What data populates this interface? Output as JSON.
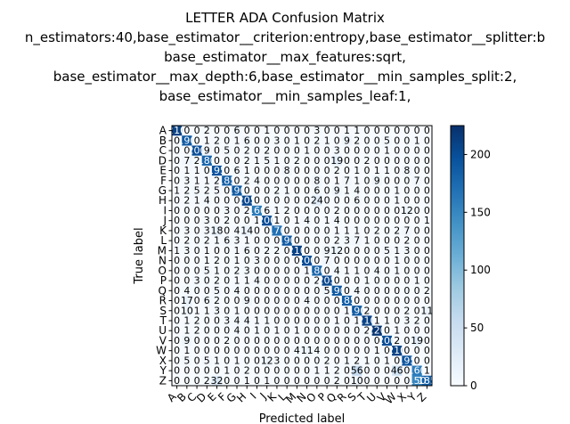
{
  "chart_data": {
    "type": "heatmap",
    "title_lines": [
      "LETTER ADA Confusion Matrix",
      "n_estimators:40,base_estimator__criterion:entropy,base_estimator__splitter:b",
      "base_estimator__max_features:sqrt,",
      "base_estimator__max_depth:6,base_estimator__min_samples_split:2,",
      "base_estimator__min_samples_leaf:1,"
    ],
    "xlabel": "Predicted label",
    "ylabel": "True label",
    "labels": [
      "A",
      "B",
      "C",
      "D",
      "E",
      "F",
      "G",
      "H",
      "I",
      "J",
      "K",
      "L",
      "M",
      "N",
      "O",
      "P",
      "Q",
      "R",
      "S",
      "T",
      "U",
      "V",
      "W",
      "X",
      "Y",
      "Z"
    ],
    "matrix": [
      [
        210,
        0,
        0,
        2,
        0,
        0,
        6,
        0,
        0,
        1,
        0,
        0,
        0,
        0,
        3,
        0,
        0,
        1,
        1,
        0,
        0,
        0,
        0,
        0,
        0,
        0
      ],
      [
        0,
        190,
        0,
        1,
        2,
        0,
        1,
        6,
        0,
        0,
        3,
        0,
        1,
        0,
        2,
        1,
        0,
        9,
        2,
        0,
        0,
        5,
        0,
        0,
        1,
        0
      ],
      [
        0,
        0,
        200,
        9,
        0,
        5,
        0,
        2,
        0,
        2,
        0,
        0,
        0,
        1,
        0,
        0,
        3,
        0,
        0,
        0,
        0,
        1,
        0,
        0,
        0,
        0
      ],
      [
        0,
        7,
        2,
        180,
        0,
        0,
        0,
        2,
        1,
        5,
        1,
        0,
        2,
        0,
        0,
        0,
        19,
        0,
        0,
        2,
        0,
        0,
        0,
        0,
        0,
        0
      ],
      [
        0,
        1,
        1,
        0,
        195,
        0,
        6,
        1,
        0,
        0,
        0,
        8,
        0,
        0,
        0,
        0,
        2,
        0,
        1,
        0,
        1,
        1,
        0,
        8,
        0,
        0
      ],
      [
        0,
        3,
        1,
        1,
        2,
        185,
        0,
        2,
        4,
        0,
        0,
        0,
        0,
        0,
        8,
        0,
        1,
        7,
        1,
        0,
        9,
        0,
        0,
        0,
        7,
        0
      ],
      [
        1,
        2,
        5,
        2,
        5,
        0,
        190,
        0,
        0,
        0,
        2,
        1,
        0,
        0,
        6,
        0,
        9,
        1,
        4,
        0,
        0,
        0,
        1,
        0,
        0,
        0
      ],
      [
        0,
        2,
        1,
        4,
        0,
        0,
        0,
        205,
        0,
        0,
        0,
        0,
        0,
        0,
        24,
        0,
        0,
        0,
        6,
        0,
        0,
        0,
        1,
        0,
        0,
        0
      ],
      [
        0,
        0,
        0,
        0,
        0,
        3,
        0,
        2,
        160,
        6,
        1,
        2,
        0,
        0,
        0,
        0,
        2,
        0,
        0,
        0,
        0,
        0,
        0,
        12,
        0,
        0
      ],
      [
        0,
        0,
        0,
        3,
        0,
        2,
        0,
        0,
        1,
        200,
        1,
        0,
        1,
        4,
        0,
        1,
        4,
        0,
        0,
        0,
        0,
        0,
        0,
        0,
        0,
        1
      ],
      [
        0,
        3,
        0,
        3,
        18,
        0,
        4,
        14,
        0,
        0,
        170,
        0,
        0,
        0,
        0,
        0,
        1,
        1,
        1,
        0,
        2,
        0,
        2,
        7,
        0,
        0
      ],
      [
        0,
        2,
        0,
        2,
        1,
        6,
        3,
        1,
        0,
        0,
        0,
        190,
        0,
        0,
        0,
        0,
        2,
        3,
        7,
        1,
        0,
        0,
        0,
        2,
        0,
        0
      ],
      [
        1,
        3,
        0,
        1,
        0,
        0,
        1,
        6,
        0,
        2,
        2,
        0,
        210,
        0,
        0,
        9,
        12,
        0,
        0,
        0,
        0,
        5,
        1,
        3,
        0,
        0
      ],
      [
        0,
        0,
        0,
        1,
        2,
        0,
        1,
        0,
        3,
        0,
        0,
        0,
        0,
        200,
        0,
        7,
        0,
        0,
        0,
        0,
        0,
        0,
        1,
        0,
        0,
        0
      ],
      [
        0,
        0,
        0,
        5,
        1,
        0,
        2,
        3,
        0,
        0,
        0,
        0,
        0,
        1,
        180,
        0,
        4,
        1,
        1,
        0,
        4,
        0,
        1,
        0,
        0,
        0
      ],
      [
        0,
        0,
        3,
        0,
        2,
        0,
        1,
        1,
        4,
        0,
        0,
        0,
        0,
        0,
        2,
        205,
        0,
        0,
        0,
        1,
        0,
        0,
        0,
        0,
        1,
        0
      ],
      [
        0,
        4,
        0,
        0,
        5,
        0,
        4,
        0,
        0,
        0,
        0,
        0,
        0,
        0,
        0,
        5,
        190,
        0,
        4,
        0,
        0,
        0,
        0,
        0,
        0,
        2
      ],
      [
        0,
        17,
        0,
        6,
        2,
        0,
        0,
        9,
        0,
        0,
        0,
        0,
        0,
        4,
        0,
        0,
        0,
        185,
        0,
        0,
        0,
        0,
        0,
        0,
        0,
        0
      ],
      [
        0,
        10,
        1,
        1,
        3,
        0,
        1,
        0,
        0,
        0,
        0,
        0,
        0,
        0,
        0,
        0,
        0,
        1,
        190,
        2,
        0,
        0,
        0,
        2,
        0,
        11
      ],
      [
        0,
        1,
        2,
        0,
        0,
        3,
        4,
        4,
        1,
        1,
        0,
        0,
        0,
        0,
        0,
        0,
        1,
        0,
        1,
        210,
        1,
        1,
        0,
        3,
        2,
        0
      ],
      [
        0,
        1,
        2,
        0,
        0,
        0,
        4,
        0,
        1,
        0,
        1,
        0,
        1,
        0,
        0,
        0,
        0,
        0,
        0,
        2,
        220,
        0,
        1,
        0,
        0,
        0
      ],
      [
        0,
        9,
        0,
        0,
        0,
        2,
        0,
        0,
        0,
        0,
        0,
        0,
        0,
        0,
        0,
        0,
        0,
        0,
        0,
        0,
        0,
        200,
        2,
        0,
        19,
        0
      ],
      [
        0,
        1,
        0,
        0,
        0,
        0,
        0,
        0,
        0,
        0,
        0,
        0,
        4,
        11,
        4,
        0,
        0,
        0,
        0,
        0,
        1,
        0,
        210,
        0,
        0,
        0
      ],
      [
        0,
        5,
        0,
        5,
        1,
        0,
        1,
        0,
        0,
        12,
        3,
        0,
        0,
        0,
        0,
        2,
        0,
        1,
        2,
        1,
        0,
        1,
        0,
        195,
        0,
        0
      ],
      [
        0,
        0,
        0,
        0,
        0,
        1,
        0,
        2,
        0,
        0,
        0,
        0,
        0,
        0,
        1,
        1,
        2,
        0,
        56,
        0,
        0,
        0,
        46,
        0,
        160,
        1
      ],
      [
        0,
        0,
        0,
        2,
        32,
        0,
        0,
        1,
        0,
        1,
        0,
        0,
        0,
        0,
        0,
        0,
        2,
        0,
        10,
        0,
        0,
        0,
        0,
        0,
        150,
        185
      ]
    ],
    "colorbar": {
      "min": 0,
      "max": 225,
      "ticks": [
        0,
        50,
        100,
        150,
        200
      ]
    },
    "colormap": "Blues",
    "grid": false
  }
}
